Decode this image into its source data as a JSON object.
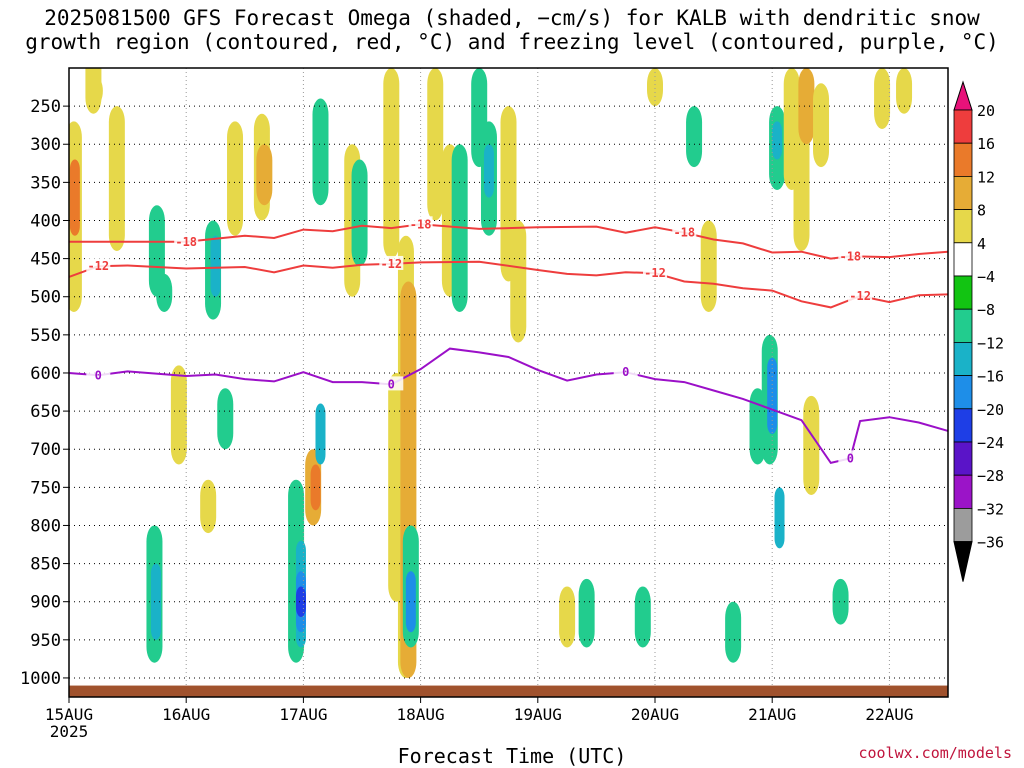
{
  "title_line1": "2025081500 GFS Forecast Omega (shaded, −cm/s) for KALB with dendritic snow",
  "title_line2": "growth region (contoured, red, °C) and freezing level (contoured, purple, °C)",
  "credit": "coolwx.com/models",
  "chart_data": {
    "type": "heatmap",
    "xlabel": "Forecast Time (UTC)",
    "ylabel": "",
    "x_ticks": [
      "15AUG",
      "16AUG",
      "17AUG",
      "18AUG",
      "19AUG",
      "20AUG",
      "21AUG",
      "22AUG"
    ],
    "x_year_label": "2025",
    "x_range_hours": [
      0,
      180
    ],
    "y_ticks": [
      250,
      300,
      350,
      400,
      450,
      500,
      550,
      600,
      650,
      700,
      750,
      800,
      850,
      900,
      950,
      1000
    ],
    "y_range_hPa": [
      1025,
      200
    ],
    "grid": true,
    "colorbar": {
      "labels": [
        "20",
        "16",
        "12",
        "8",
        "4",
        "−4",
        "−8",
        "−12",
        "−16",
        "−20",
        "−24",
        "−28",
        "−32",
        "−36"
      ],
      "colors": [
        "#e8127a",
        "#ee3d3d",
        "#ea7a2a",
        "#e6ac36",
        "#e6d84a",
        "#ffffff",
        "#12c412",
        "#22cc8e",
        "#1ab2c8",
        "#1e8ee8",
        "#1e3ee6",
        "#5a14c8",
        "#9b14c8",
        "#9c9c9c",
        "#000000"
      ]
    },
    "contours": [
      {
        "label": "-18",
        "color": "#ee3d3d",
        "x": [
          0,
          24,
          36,
          42,
          48,
          54,
          60,
          66,
          72,
          84,
          96,
          108,
          114,
          120,
          126,
          132,
          138,
          144,
          150,
          156,
          160,
          168,
          174,
          180
        ],
        "y": [
          428,
          428,
          420,
          423,
          412,
          414,
          407,
          410,
          405,
          411,
          409,
          408,
          416,
          409,
          416,
          425,
          430,
          442,
          441,
          450,
          447,
          448,
          444,
          441
        ]
      },
      {
        "label": "-12",
        "color": "#ee3d3d",
        "x": [
          0,
          6,
          12,
          24,
          36,
          42,
          48,
          54,
          60,
          66,
          72,
          84,
          96,
          102,
          108,
          114,
          120,
          126,
          132,
          138,
          144,
          150,
          156,
          162,
          168,
          174,
          180
        ],
        "y": [
          474,
          460,
          459,
          463,
          461,
          468,
          459,
          462,
          458,
          457,
          455,
          454,
          465,
          470,
          472,
          468,
          469,
          480,
          483,
          489,
          492,
          506,
          514,
          499,
          507,
          498,
          497
        ]
      },
      {
        "label": "0",
        "color": "#9b10c8",
        "x": [
          0,
          6,
          12,
          24,
          30,
          36,
          42,
          48,
          54,
          60,
          66,
          72,
          78,
          84,
          90,
          96,
          102,
          108,
          114,
          120,
          126,
          132,
          138,
          144,
          150,
          156,
          160,
          162,
          168,
          174,
          180
        ],
        "y": [
          600,
          603,
          598,
          604,
          602,
          608,
          611,
          599,
          612,
          612,
          615,
          595,
          568,
          573,
          579,
          596,
          610,
          602,
          599,
          608,
          612,
          623,
          634,
          648,
          662,
          718,
          712,
          663,
          658,
          665,
          676
        ]
      }
    ],
    "omega_features": [
      {
        "t": 1.0,
        "p0": 270,
        "p1": 520,
        "value": 4
      },
      {
        "t": 1.2,
        "p0": 320,
        "p1": 420,
        "value": 12
      },
      {
        "t": 5.0,
        "p0": 180,
        "p1": 260,
        "value": 4
      },
      {
        "t": 5.3,
        "p0": 210,
        "p1": 250,
        "value": 4
      },
      {
        "t": 9.8,
        "p0": 250,
        "p1": 440,
        "value": 4
      },
      {
        "t": 18.0,
        "p0": 380,
        "p1": 500,
        "value": -8
      },
      {
        "t": 19.5,
        "p0": 470,
        "p1": 520,
        "value": -8
      },
      {
        "t": 17.5,
        "p0": 800,
        "p1": 980,
        "value": -8
      },
      {
        "t": 17.8,
        "p0": 850,
        "p1": 950,
        "value": -12
      },
      {
        "t": 22.5,
        "p0": 590,
        "p1": 720,
        "value": 4
      },
      {
        "t": 28.5,
        "p0": 740,
        "p1": 810,
        "value": 4
      },
      {
        "t": 29.5,
        "p0": 400,
        "p1": 530,
        "value": -8
      },
      {
        "t": 30.0,
        "p0": 420,
        "p1": 500,
        "value": -12
      },
      {
        "t": 32.0,
        "p0": 620,
        "p1": 700,
        "value": -8
      },
      {
        "t": 34.0,
        "p0": 270,
        "p1": 420,
        "value": 4
      },
      {
        "t": 39.5,
        "p0": 260,
        "p1": 400,
        "value": 4
      },
      {
        "t": 40.0,
        "p0": 300,
        "p1": 380,
        "value": 8
      },
      {
        "t": 46.5,
        "p0": 740,
        "p1": 980,
        "value": -8
      },
      {
        "t": 47.5,
        "p0": 820,
        "p1": 960,
        "value": -12
      },
      {
        "t": 47.5,
        "p0": 860,
        "p1": 940,
        "value": -16
      },
      {
        "t": 47.5,
        "p0": 880,
        "p1": 920,
        "value": -20
      },
      {
        "t": 50.0,
        "p0": 700,
        "p1": 800,
        "value": 8
      },
      {
        "t": 50.5,
        "p0": 720,
        "p1": 780,
        "value": 12
      },
      {
        "t": 51.5,
        "p0": 240,
        "p1": 380,
        "value": -8
      },
      {
        "t": 51.5,
        "p0": 640,
        "p1": 720,
        "value": -12
      },
      {
        "t": 58.0,
        "p0": 300,
        "p1": 500,
        "value": 4
      },
      {
        "t": 59.5,
        "p0": 320,
        "p1": 460,
        "value": -8
      },
      {
        "t": 66.0,
        "p0": 200,
        "p1": 450,
        "value": 4
      },
      {
        "t": 67.0,
        "p0": 600,
        "p1": 900,
        "value": 4
      },
      {
        "t": 69.0,
        "p0": 420,
        "p1": 1000,
        "value": 4
      },
      {
        "t": 69.5,
        "p0": 480,
        "p1": 1000,
        "value": 8
      },
      {
        "t": 70.0,
        "p0": 800,
        "p1": 960,
        "value": -8
      },
      {
        "t": 70.0,
        "p0": 860,
        "p1": 940,
        "value": -16
      },
      {
        "t": 75.0,
        "p0": 200,
        "p1": 400,
        "value": 4
      },
      {
        "t": 78.0,
        "p0": 300,
        "p1": 500,
        "value": 4
      },
      {
        "t": 80.0,
        "p0": 300,
        "p1": 520,
        "value": -8
      },
      {
        "t": 84.0,
        "p0": 200,
        "p1": 330,
        "value": -8
      },
      {
        "t": 86.0,
        "p0": 270,
        "p1": 420,
        "value": -8
      },
      {
        "t": 86.0,
        "p0": 300,
        "p1": 370,
        "value": -12
      },
      {
        "t": 90.0,
        "p0": 250,
        "p1": 480,
        "value": 4
      },
      {
        "t": 92.0,
        "p0": 400,
        "p1": 560,
        "value": 4
      },
      {
        "t": 102.0,
        "p0": 880,
        "p1": 960,
        "value": 4
      },
      {
        "t": 106.0,
        "p0": 870,
        "p1": 960,
        "value": -8
      },
      {
        "t": 117.5,
        "p0": 880,
        "p1": 960,
        "value": -8
      },
      {
        "t": 120.0,
        "p0": 200,
        "p1": 250,
        "value": 4
      },
      {
        "t": 128.0,
        "p0": 250,
        "p1": 330,
        "value": -8
      },
      {
        "t": 131.0,
        "p0": 400,
        "p1": 520,
        "value": 4
      },
      {
        "t": 136.0,
        "p0": 900,
        "p1": 980,
        "value": -8
      },
      {
        "t": 141.0,
        "p0": 620,
        "p1": 720,
        "value": -8
      },
      {
        "t": 143.5,
        "p0": 550,
        "p1": 720,
        "value": -8
      },
      {
        "t": 144.0,
        "p0": 580,
        "p1": 680,
        "value": -16
      },
      {
        "t": 145.0,
        "p0": 250,
        "p1": 360,
        "value": -8
      },
      {
        "t": 145.0,
        "p0": 270,
        "p1": 320,
        "value": -12
      },
      {
        "t": 145.5,
        "p0": 750,
        "p1": 830,
        "value": -12
      },
      {
        "t": 148.0,
        "p0": 200,
        "p1": 360,
        "value": 4
      },
      {
        "t": 150.0,
        "p0": 240,
        "p1": 440,
        "value": 4
      },
      {
        "t": 151.0,
        "p0": 200,
        "p1": 300,
        "value": 8
      },
      {
        "t": 152.0,
        "p0": 630,
        "p1": 760,
        "value": 4
      },
      {
        "t": 154.0,
        "p0": 220,
        "p1": 330,
        "value": 4
      },
      {
        "t": 158.0,
        "p0": 870,
        "p1": 930,
        "value": -8
      },
      {
        "t": 166.5,
        "p0": 200,
        "p1": 280,
        "value": 4
      },
      {
        "t": 171.0,
        "p0": 200,
        "p1": 260,
        "value": 4
      }
    ]
  }
}
